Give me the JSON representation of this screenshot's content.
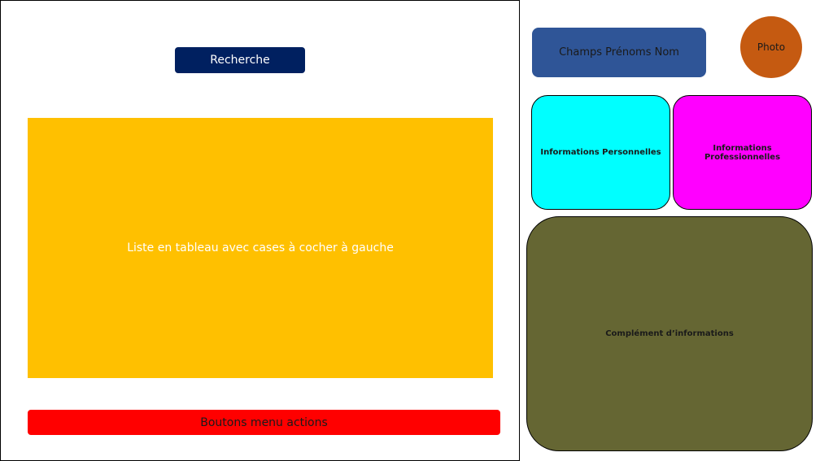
{
  "left_panel": {
    "search_label": "Recherche",
    "table_label": "Liste en tableau avec cases à cocher à gauche",
    "actions_label": "Boutons menu actions"
  },
  "right_panel": {
    "name_label": "Champs Prénoms Nom",
    "photo_label": "Photo",
    "personal_info_label": "Informations Personnelles",
    "professional_info_label": "Informations Professionnelles",
    "complement_label": "Complément d’informations"
  },
  "colors": {
    "search": "#002060",
    "table": "#ffc000",
    "actions": "#ff0000",
    "name_field": "#2f5597",
    "photo": "#c55a11",
    "personal_info": "#00ffff",
    "professional_info": "#ff00ff",
    "complement": "#656633"
  }
}
